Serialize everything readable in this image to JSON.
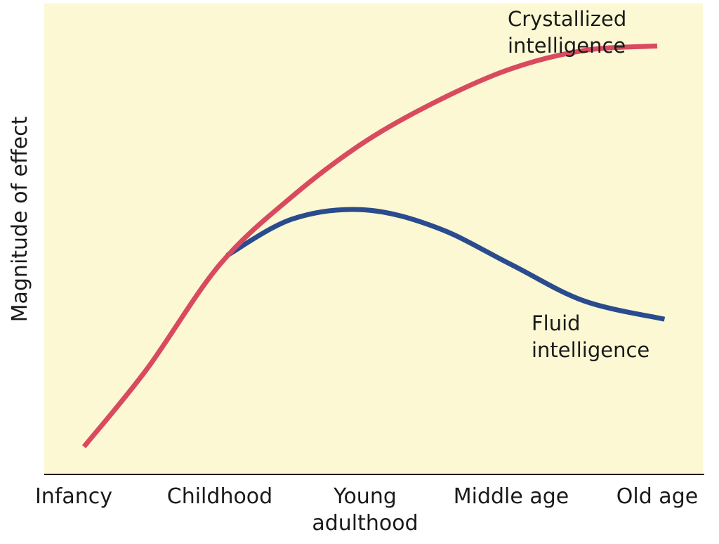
{
  "chart_data": {
    "type": "line",
    "title": "",
    "xlabel": "",
    "ylabel": "Magnitude of effect",
    "categories": [
      [
        "Infancy"
      ],
      [
        "Childhood"
      ],
      [
        "Young",
        "adulthood"
      ],
      [
        "Middle age"
      ],
      [
        "Old age"
      ]
    ],
    "ylim": [
      0,
      100
    ],
    "grid": false,
    "legend": "inline labels at series ends",
    "series": [
      {
        "name": "Crystallized intelligence",
        "label_lines": [
          "Crystallized",
          "intelligence"
        ],
        "color": "#d94a5e",
        "points": [
          {
            "x": 0.07,
            "y": 5
          },
          {
            "x": 0.5,
            "y": 22
          },
          {
            "x": 1.0,
            "y": 45
          },
          {
            "x": 1.5,
            "y": 60
          },
          {
            "x": 2.0,
            "y": 72
          },
          {
            "x": 2.5,
            "y": 81
          },
          {
            "x": 3.0,
            "y": 88
          },
          {
            "x": 3.5,
            "y": 92
          },
          {
            "x": 4.0,
            "y": 93
          }
        ]
      },
      {
        "name": "Fluid intelligence",
        "label_lines": [
          "Fluid",
          "intelligence"
        ],
        "color": "#2a4b8d",
        "points": [
          {
            "x": 1.05,
            "y": 47
          },
          {
            "x": 1.5,
            "y": 55
          },
          {
            "x": 2.0,
            "y": 57
          },
          {
            "x": 2.5,
            "y": 53
          },
          {
            "x": 3.0,
            "y": 45
          },
          {
            "x": 3.5,
            "y": 37
          },
          {
            "x": 4.05,
            "y": 33
          }
        ]
      }
    ],
    "colors": {
      "plot_background": "#fbf8d3",
      "axis": "#1a1a1a"
    }
  }
}
